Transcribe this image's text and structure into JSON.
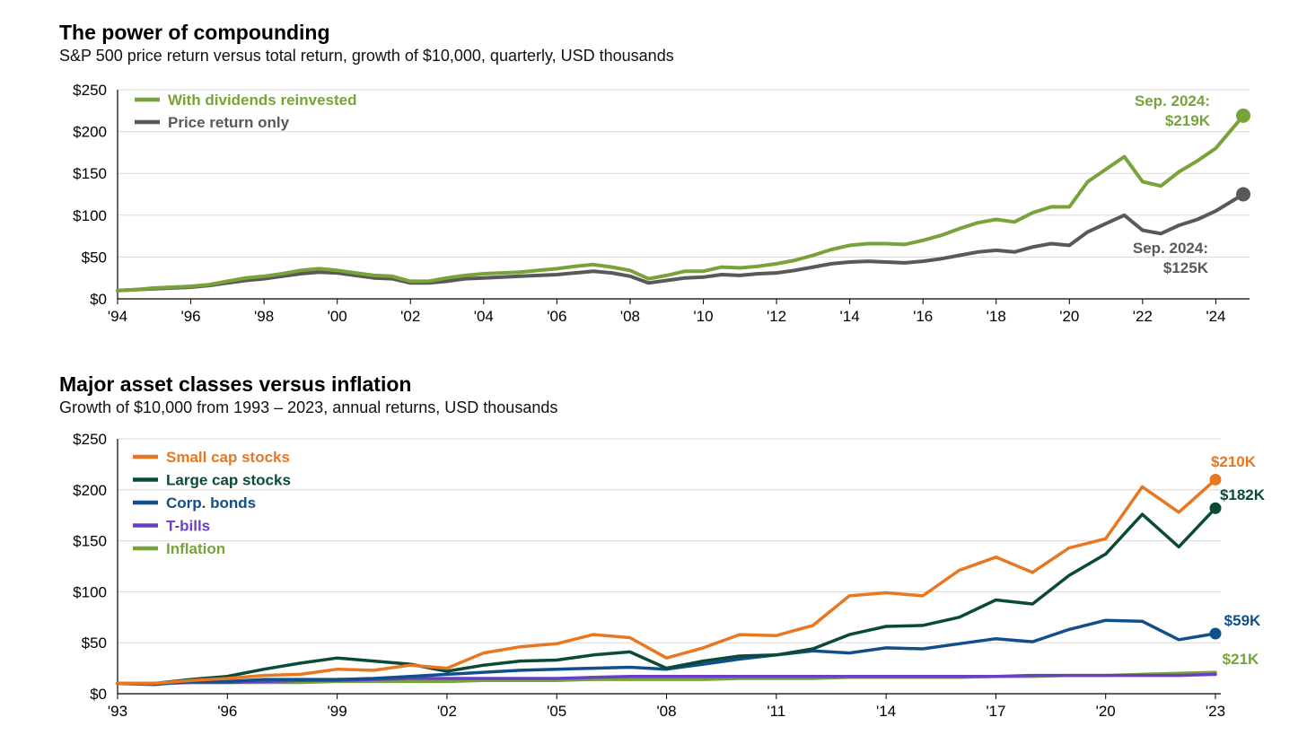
{
  "chart_data": [
    {
      "type": "line",
      "title": "The power of compounding",
      "subtitle": "S&P 500 price return versus total return, growth of $10,000, quarterly, USD thousands",
      "xlabel": "",
      "ylabel": "",
      "xlim": [
        1994,
        2024.75
      ],
      "ylim": [
        0,
        250
      ],
      "y_ticks": [
        0,
        50,
        100,
        150,
        200,
        250
      ],
      "y_tick_labels": [
        "$0",
        "$50",
        "$100",
        "$150",
        "$200",
        "$250"
      ],
      "x_ticks": [
        1994,
        1996,
        1998,
        2000,
        2002,
        2004,
        2006,
        2008,
        2010,
        2012,
        2014,
        2016,
        2018,
        2020,
        2022,
        2024
      ],
      "x_tick_labels": [
        "'94",
        "'96",
        "'98",
        "'00",
        "'02",
        "'04",
        "'06",
        "'08",
        "'10",
        "'12",
        "'14",
        "'16",
        "'18",
        "'20",
        "'22",
        "'24"
      ],
      "grid": true,
      "legend_position": "top-left",
      "series": [
        {
          "name": "With dividends reinvested",
          "color": "#77a33a",
          "x": [
            1994,
            1994.5,
            1995,
            1995.5,
            1996,
            1996.5,
            1997,
            1997.5,
            1998,
            1998.5,
            1999,
            1999.5,
            2000,
            2000.5,
            2001,
            2001.5,
            2002,
            2002.5,
            2003,
            2003.5,
            2004,
            2004.5,
            2005,
            2005.5,
            2006,
            2006.5,
            2007,
            2007.5,
            2008,
            2008.5,
            2009,
            2009.5,
            2010,
            2010.5,
            2011,
            2011.5,
            2012,
            2012.5,
            2013,
            2013.5,
            2014,
            2014.5,
            2015,
            2015.5,
            2016,
            2016.5,
            2017,
            2017.5,
            2018,
            2018.5,
            2019,
            2019.5,
            2020,
            2020.5,
            2021,
            2021.5,
            2022,
            2022.5,
            2023,
            2023.5,
            2024,
            2024.75
          ],
          "values": [
            10,
            11,
            13,
            14,
            15,
            17,
            21,
            25,
            27,
            30,
            34,
            36,
            34,
            31,
            28,
            27,
            21,
            21,
            25,
            28,
            30,
            31,
            32,
            34,
            36,
            39,
            41,
            38,
            34,
            24,
            28,
            33,
            33,
            38,
            37,
            39,
            42,
            46,
            52,
            59,
            64,
            66,
            66,
            65,
            70,
            76,
            84,
            91,
            95,
            92,
            103,
            110,
            110,
            140,
            155,
            170,
            140,
            135,
            152,
            165,
            180,
            219
          ],
          "end_label": [
            "Sep. 2024:",
            "$219K"
          ]
        },
        {
          "name": "Price return only",
          "color": "#595959",
          "x": [
            1994,
            1994.5,
            1995,
            1995.5,
            1996,
            1996.5,
            1997,
            1997.5,
            1998,
            1998.5,
            1999,
            1999.5,
            2000,
            2000.5,
            2001,
            2001.5,
            2002,
            2002.5,
            2003,
            2003.5,
            2004,
            2004.5,
            2005,
            2005.5,
            2006,
            2006.5,
            2007,
            2007.5,
            2008,
            2008.5,
            2009,
            2009.5,
            2010,
            2010.5,
            2011,
            2011.5,
            2012,
            2012.5,
            2013,
            2013.5,
            2014,
            2014.5,
            2015,
            2015.5,
            2016,
            2016.5,
            2017,
            2017.5,
            2018,
            2018.5,
            2019,
            2019.5,
            2020,
            2020.5,
            2021,
            2021.5,
            2022,
            2022.5,
            2023,
            2023.5,
            2024,
            2024.75
          ],
          "values": [
            10,
            11,
            12,
            13,
            14,
            16,
            19,
            22,
            24,
            27,
            30,
            32,
            31,
            28,
            25,
            24,
            19,
            19,
            21,
            24,
            25,
            26,
            27,
            28,
            29,
            31,
            33,
            31,
            27,
            19,
            22,
            25,
            26,
            29,
            28,
            30,
            31,
            34,
            38,
            42,
            44,
            45,
            44,
            43,
            45,
            48,
            52,
            56,
            58,
            56,
            62,
            66,
            64,
            80,
            90,
            100,
            82,
            78,
            88,
            95,
            105,
            125
          ],
          "end_label": [
            "Sep. 2024:",
            "$125K"
          ]
        }
      ]
    },
    {
      "type": "line",
      "title": "Major asset classes versus inflation",
      "subtitle": "Growth of $10,000 from 1993 – 2023, annual returns, USD thousands",
      "xlabel": "",
      "ylabel": "",
      "xlim": [
        1993,
        2023
      ],
      "ylim": [
        0,
        250
      ],
      "y_ticks": [
        0,
        50,
        100,
        150,
        200,
        250
      ],
      "y_tick_labels": [
        "$0",
        "$50",
        "$100",
        "$150",
        "$200",
        "$250"
      ],
      "x_ticks": [
        1993,
        1996,
        1999,
        2002,
        2005,
        2008,
        2011,
        2014,
        2017,
        2020,
        2023
      ],
      "x_tick_labels": [
        "'93",
        "'96",
        "'99",
        "'02",
        "'05",
        "'08",
        "'11",
        "'14",
        "'17",
        "'20",
        "'23"
      ],
      "x": [
        1993,
        1994,
        1995,
        1996,
        1997,
        1998,
        1999,
        2000,
        2001,
        2002,
        2003,
        2004,
        2005,
        2006,
        2007,
        2008,
        2009,
        2010,
        2011,
        2012,
        2013,
        2014,
        2015,
        2016,
        2017,
        2018,
        2019,
        2020,
        2021,
        2022,
        2023
      ],
      "grid": true,
      "legend_position": "top-left",
      "series": [
        {
          "name": "Small cap stocks",
          "color": "#e87722",
          "values": [
            10,
            10,
            13,
            15,
            18,
            19,
            24,
            23,
            28,
            25,
            40,
            46,
            49,
            58,
            55,
            35,
            45,
            58,
            57,
            67,
            96,
            99,
            96,
            121,
            134,
            119,
            143,
            152,
            203,
            178,
            210
          ],
          "end_label": "$210K"
        },
        {
          "name": "Large cap stocks",
          "color": "#0b4a37",
          "values": [
            10,
            10,
            14,
            17,
            24,
            30,
            35,
            32,
            29,
            22,
            28,
            32,
            33,
            38,
            41,
            25,
            32,
            37,
            38,
            44,
            58,
            66,
            67,
            75,
            92,
            88,
            116,
            137,
            176,
            144,
            182
          ],
          "end_label": "$182K"
        },
        {
          "name": "Corp. bonds",
          "color": "#114f8c",
          "values": [
            10,
            9,
            12,
            12,
            14,
            14,
            14,
            15,
            17,
            19,
            21,
            23,
            24,
            25,
            26,
            24,
            29,
            34,
            38,
            42,
            40,
            45,
            44,
            49,
            54,
            51,
            63,
            72,
            71,
            53,
            59
          ],
          "end_label": "$59K"
        },
        {
          "name": "T-bills",
          "color": "#6a3fc8",
          "values": [
            10,
            10,
            11,
            11,
            12,
            13,
            13,
            14,
            15,
            15,
            15,
            15,
            15,
            16,
            17,
            17,
            17,
            17,
            17,
            17,
            17,
            17,
            17,
            17,
            17,
            18,
            18,
            18,
            18,
            18,
            19
          ],
          "end_label": ""
        },
        {
          "name": "Inflation",
          "color": "#77a33a",
          "values": [
            10,
            10,
            11,
            11,
            11,
            11,
            12,
            12,
            12,
            12,
            13,
            13,
            13,
            14,
            14,
            14,
            14,
            15,
            15,
            15,
            16,
            16,
            16,
            16,
            17,
            17,
            18,
            18,
            19,
            20,
            21
          ],
          "end_label": "$21K"
        }
      ]
    }
  ]
}
